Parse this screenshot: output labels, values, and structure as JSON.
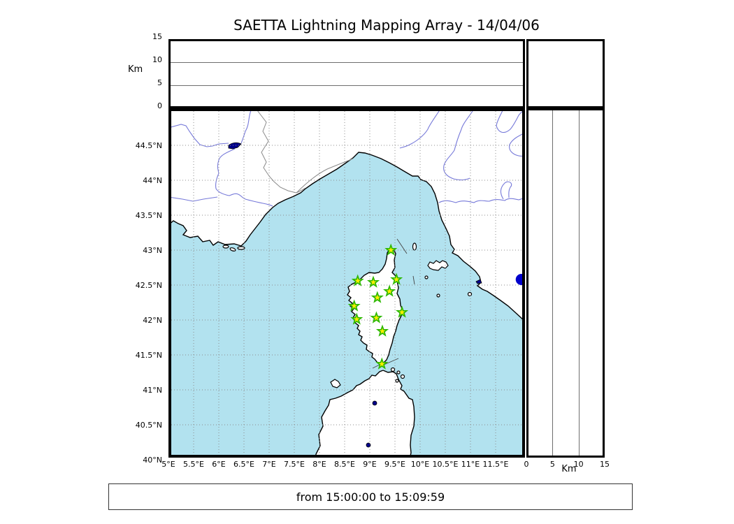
{
  "chart_data": {
    "type": "scatter",
    "title": "SAETTA Lightning Mapping Array - 14/04/06",
    "time_window": "from 15:00:00 to 15:09:59",
    "panels": {
      "altitude_vs_longitude": {
        "position": "top",
        "ylabel": "Km",
        "ylim": [
          0,
          15
        ],
        "yticks": [
          {
            "label": "15",
            "km": 15
          },
          {
            "label": "10",
            "km": 10
          },
          {
            "label": "5",
            "km": 5
          },
          {
            "label": "0",
            "km": 0
          }
        ],
        "grid": "horizontal",
        "points": []
      },
      "map": {
        "position": "center",
        "lon_lim": [
          5,
          12.08
        ],
        "lat_lim": [
          40,
          45.03
        ],
        "grid": "dotted",
        "lon_ticks": [
          {
            "label": "5°E",
            "lon": 5
          },
          {
            "label": "5.5°E",
            "lon": 5.5
          },
          {
            "label": "6°E",
            "lon": 6
          },
          {
            "label": "6.5°E",
            "lon": 6.5
          },
          {
            "label": "7°E",
            "lon": 7
          },
          {
            "label": "7.5°E",
            "lon": 7.5
          },
          {
            "label": "8°E",
            "lon": 8
          },
          {
            "label": "8.5°E",
            "lon": 8.5
          },
          {
            "label": "9°E",
            "lon": 9
          },
          {
            "label": "9.5°E",
            "lon": 9.5
          },
          {
            "label": "10°E",
            "lon": 10
          },
          {
            "label": "10.5°E",
            "lon": 10.5
          },
          {
            "label": "11°E",
            "lon": 11
          },
          {
            "label": "11.5°E",
            "lon": 11.5
          }
        ],
        "lat_ticks": [
          {
            "label": "44.5°N",
            "lat": 44.5
          },
          {
            "label": "44°N",
            "lat": 44
          },
          {
            "label": "43.5°N",
            "lat": 43.5
          },
          {
            "label": "43°N",
            "lat": 43
          },
          {
            "label": "42.5°N",
            "lat": 42.5
          },
          {
            "label": "42°N",
            "lat": 42
          },
          {
            "label": "41.5°N",
            "lat": 41.5
          },
          {
            "label": "41°N",
            "lat": 41
          },
          {
            "label": "40.5°N",
            "lat": 40.5
          },
          {
            "label": "40°N",
            "lat": 40
          }
        ],
        "series": [
          {
            "name": "lma-stations",
            "marker": "star",
            "points_lon_lat": [
              [
                9.42,
                43.0
              ],
              [
                8.76,
                42.56
              ],
              [
                9.07,
                42.54
              ],
              [
                9.53,
                42.58
              ],
              [
                9.39,
                42.41
              ],
              [
                9.15,
                42.32
              ],
              [
                8.69,
                42.2
              ],
              [
                9.64,
                42.11
              ],
              [
                9.13,
                42.03
              ],
              [
                8.74,
                42.01
              ],
              [
                9.25,
                41.84
              ],
              [
                9.24,
                41.37
              ]
            ]
          },
          {
            "name": "lightning-source",
            "marker": "circle",
            "points_lon_lat": [
              [
                12.01,
                42.58
              ]
            ]
          }
        ]
      },
      "altitude_vs_latitude": {
        "position": "right",
        "xlabel": "Km",
        "xlim": [
          0,
          15
        ],
        "xticks": [
          {
            "label": "0",
            "km": 0
          },
          {
            "label": "5",
            "km": 5
          },
          {
            "label": "10",
            "km": 10
          },
          {
            "label": "15",
            "km": 15
          }
        ],
        "grid": "vertical",
        "points": []
      }
    }
  },
  "colors": {
    "sea": "#b2e2ef",
    "land": "#ffffff",
    "coast": "#000000",
    "river": "#7679d9",
    "admin_border": "#8a8a8a",
    "lake": "#00008b",
    "map_grid": "#8c8c8c",
    "panel_grid": "#6e6e6e",
    "star_fill": "#ffee00",
    "star_edge": "#2db800",
    "source_dot": "#0000cc",
    "frame": "#000000"
  }
}
